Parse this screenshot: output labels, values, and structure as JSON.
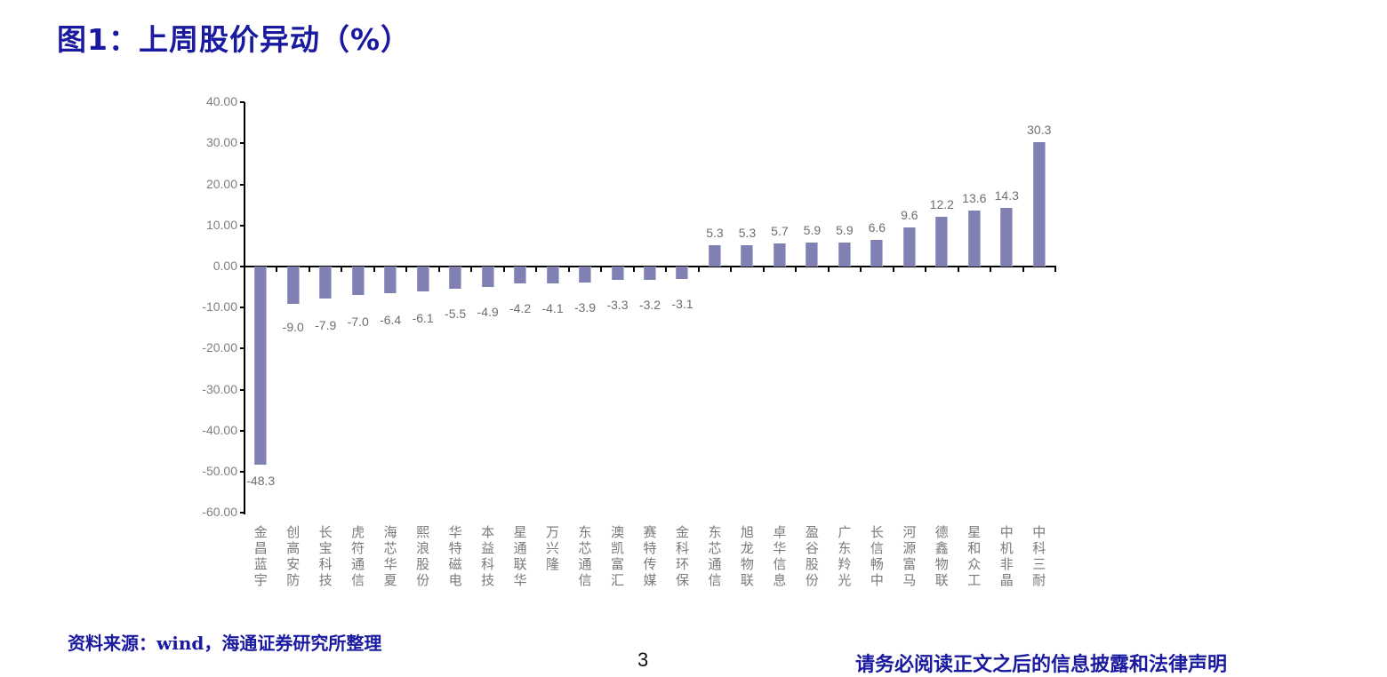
{
  "title": "图1：上周股价异动（%）",
  "footer": {
    "source": "资料来源：wind，海通证券研究所整理",
    "page_number": "3",
    "disclaimer": "请务必阅读正文之后的信息披露和法律声明"
  },
  "colors": {
    "bar": "#8080b3",
    "title": "#1a1aa0",
    "axis_text": "#7f7f7f"
  },
  "chart_data": {
    "type": "bar",
    "title": "上周股价异动（%）",
    "xlabel": "",
    "ylabel": "",
    "ylim": [
      -60,
      40
    ],
    "yticks": [
      "40.00",
      "30.00",
      "20.00",
      "10.00",
      "0.00",
      "-10.00",
      "-20.00",
      "-30.00",
      "-40.00",
      "-50.00",
      "-60.00"
    ],
    "grid": false,
    "legend": null,
    "categories": [
      "金昌蓝宇",
      "创高安防",
      "长宝科技",
      "虎符通信",
      "海芯华夏",
      "熙浪股份",
      "华特磁电",
      "本益科技",
      "星通联华",
      "万兴隆",
      "东芯通信",
      "澳凯富汇",
      "赛特传媒",
      "金科环保",
      "东芯通信",
      "旭龙物联",
      "卓华信息",
      "盈谷股份",
      "广东羚光",
      "长信畅中",
      "河源富马",
      "德鑫物联",
      "星和众工",
      "中机非晶",
      "中科三耐"
    ],
    "values": [
      -48.3,
      -9.0,
      -7.9,
      -7.0,
      -6.4,
      -6.1,
      -5.5,
      -4.9,
      -4.2,
      -4.1,
      -3.9,
      -3.3,
      -3.2,
      -3.1,
      5.3,
      5.3,
      5.7,
      5.9,
      5.9,
      6.6,
      9.6,
      12.2,
      13.6,
      14.3,
      30.3
    ],
    "value_labels": [
      "-48.3",
      "-9.0",
      "-7.9",
      "-7.0",
      "-6.4",
      "-6.1",
      "-5.5",
      "-4.9",
      "-4.2",
      "-4.1",
      "-3.9",
      "-3.3",
      "-3.2",
      "-3.1",
      "5.3",
      "5.3",
      "5.7",
      "5.9",
      "5.9",
      "6.6",
      "9.6",
      "12.2",
      "13.6",
      "14.3",
      "30.3"
    ]
  }
}
